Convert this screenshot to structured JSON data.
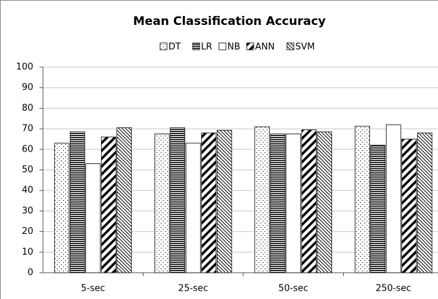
{
  "chart_data": {
    "type": "bar",
    "title": "Mean Classification Accuracy",
    "categories": [
      "5-sec",
      "25-sec",
      "50-sec",
      "250-sec"
    ],
    "series": [
      {
        "name": "DT",
        "color": "#000000",
        "pattern": "dots",
        "values": [
          63,
          67.5,
          71,
          71.3
        ]
      },
      {
        "name": "LR",
        "color": "#000000",
        "pattern": "hlines",
        "values": [
          68.5,
          70.5,
          67.5,
          62
        ]
      },
      {
        "name": "NB",
        "color": "#000000",
        "pattern": "none",
        "values": [
          53,
          63,
          67.5,
          72
        ]
      },
      {
        "name": "ANN",
        "color": "#000000",
        "pattern": "diag-thick",
        "values": [
          66,
          68,
          69.5,
          65
        ]
      },
      {
        "name": "SVM",
        "color": "#000000",
        "pattern": "diag-thin",
        "values": [
          70.5,
          69.3,
          68.5,
          68
        ]
      }
    ],
    "ylim": [
      0,
      100
    ],
    "yticks": [
      0,
      10,
      20,
      30,
      40,
      50,
      60,
      70,
      80,
      90,
      100
    ],
    "grid": true,
    "legend": "top"
  }
}
